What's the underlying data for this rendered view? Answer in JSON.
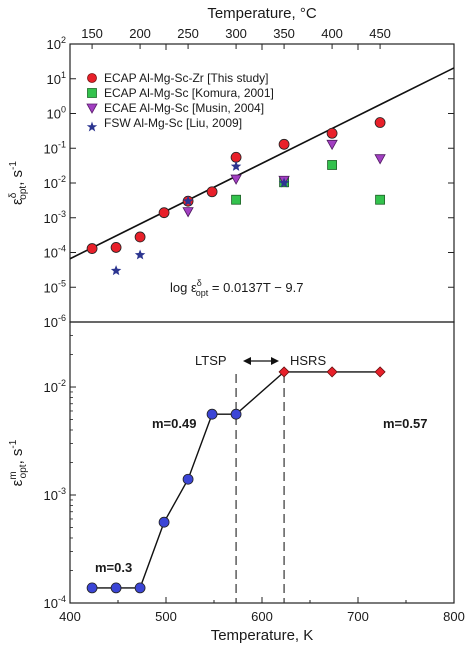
{
  "chart_data": [
    {
      "type": "scatter",
      "y_scale": "log",
      "top_axis_label": "Temperature, °C",
      "top_ticks": [
        "150",
        "200",
        "250",
        "300",
        "350",
        "400",
        "450"
      ],
      "ylabel_main": "ε",
      "ylabel_sup": "δ",
      "ylabel_sub": "opt",
      "ylabel_unit": ", s",
      "ylabel_unit_sup": "-1",
      "y_ticks": [
        {
          "base": "10",
          "exp": "2"
        },
        {
          "base": "10",
          "exp": "1"
        },
        {
          "base": "10",
          "exp": "0"
        },
        {
          "base": "10",
          "exp": "-1"
        },
        {
          "base": "10",
          "exp": "-2"
        },
        {
          "base": "10",
          "exp": "-3"
        },
        {
          "base": "10",
          "exp": "-4"
        },
        {
          "base": "10",
          "exp": "-5"
        },
        {
          "base": "10",
          "exp": "-6"
        }
      ],
      "ylim": [
        1e-06,
        100
      ],
      "xlim_K": [
        400,
        800
      ],
      "series": [
        {
          "name": "ECAP Al-Mg-Sc-Zr [This study]",
          "marker": "circle",
          "color": "#e8202a",
          "x": [
            423,
            448,
            473,
            498,
            523,
            548,
            573,
            623,
            673,
            723
          ],
          "y": [
            0.00013,
            0.00014,
            0.00028,
            0.0014,
            0.003,
            0.0056,
            0.055,
            0.13,
            0.27,
            0.55
          ]
        },
        {
          "name": "ECAP Al-Mg-Sc [Komura, 2001]",
          "marker": "square",
          "color": "#33c24d",
          "x": [
            573,
            623,
            673,
            723
          ],
          "y": [
            0.0033,
            0.0105,
            0.033,
            0.0033
          ]
        },
        {
          "name": "ECAE Al-Mg-Sc [Musin, 2004]",
          "marker": "triangle-down",
          "color": "#a23fc2",
          "x": [
            523,
            573,
            623,
            673,
            723
          ],
          "y": [
            0.0015,
            0.013,
            0.012,
            0.13,
            0.05
          ]
        },
        {
          "name": "FSW Al-Mg-Sc [Liu, 2009]",
          "marker": "star",
          "color": "#2c3590",
          "x": [
            448,
            473,
            523,
            573,
            623
          ],
          "y": [
            3e-05,
            8.5e-05,
            0.003,
            0.03,
            0.01
          ]
        }
      ],
      "fit_line": {
        "x": [
          400,
          800
        ],
        "y": [
          6.6e-05,
          20.5
        ]
      },
      "equation": {
        "lhs": "log ε",
        "sup": "δ",
        "sub": "opt",
        "rhs": " = 0.0137T − 9.7"
      }
    },
    {
      "type": "line",
      "y_scale": "log",
      "xlabel": "Temperature, K",
      "x_ticks": [
        "400",
        "500",
        "600",
        "700",
        "800"
      ],
      "xlim": [
        400,
        800
      ],
      "ylabel_main": "ε",
      "ylabel_sup": "m",
      "ylabel_sub": "opt",
      "ylabel_unit": ", s",
      "ylabel_unit_sup": "-1",
      "y_ticks": [
        {
          "base": "10",
          "exp": "-2"
        },
        {
          "base": "10",
          "exp": "-3"
        },
        {
          "base": "10",
          "exp": "-4"
        }
      ],
      "ylim": [
        0.0001,
        0.04
      ],
      "series": [
        {
          "marker": "circle",
          "color": "#3b45d6",
          "x": [
            423,
            448,
            473,
            498,
            523,
            548,
            573
          ],
          "y": [
            0.000138,
            0.000138,
            0.000138,
            0.00056,
            0.0014,
            0.0056,
            0.0056
          ]
        },
        {
          "marker": "diamond",
          "color": "#e8202a",
          "x": [
            623,
            673,
            723
          ],
          "y": [
            0.0138,
            0.0138,
            0.0138
          ]
        }
      ],
      "vlines_K": [
        573,
        623
      ],
      "annotations": [
        "m=0.3",
        "m=0.49",
        "m=0.57"
      ],
      "regions": {
        "left": "LTSP",
        "right": "HSRS"
      }
    }
  ]
}
